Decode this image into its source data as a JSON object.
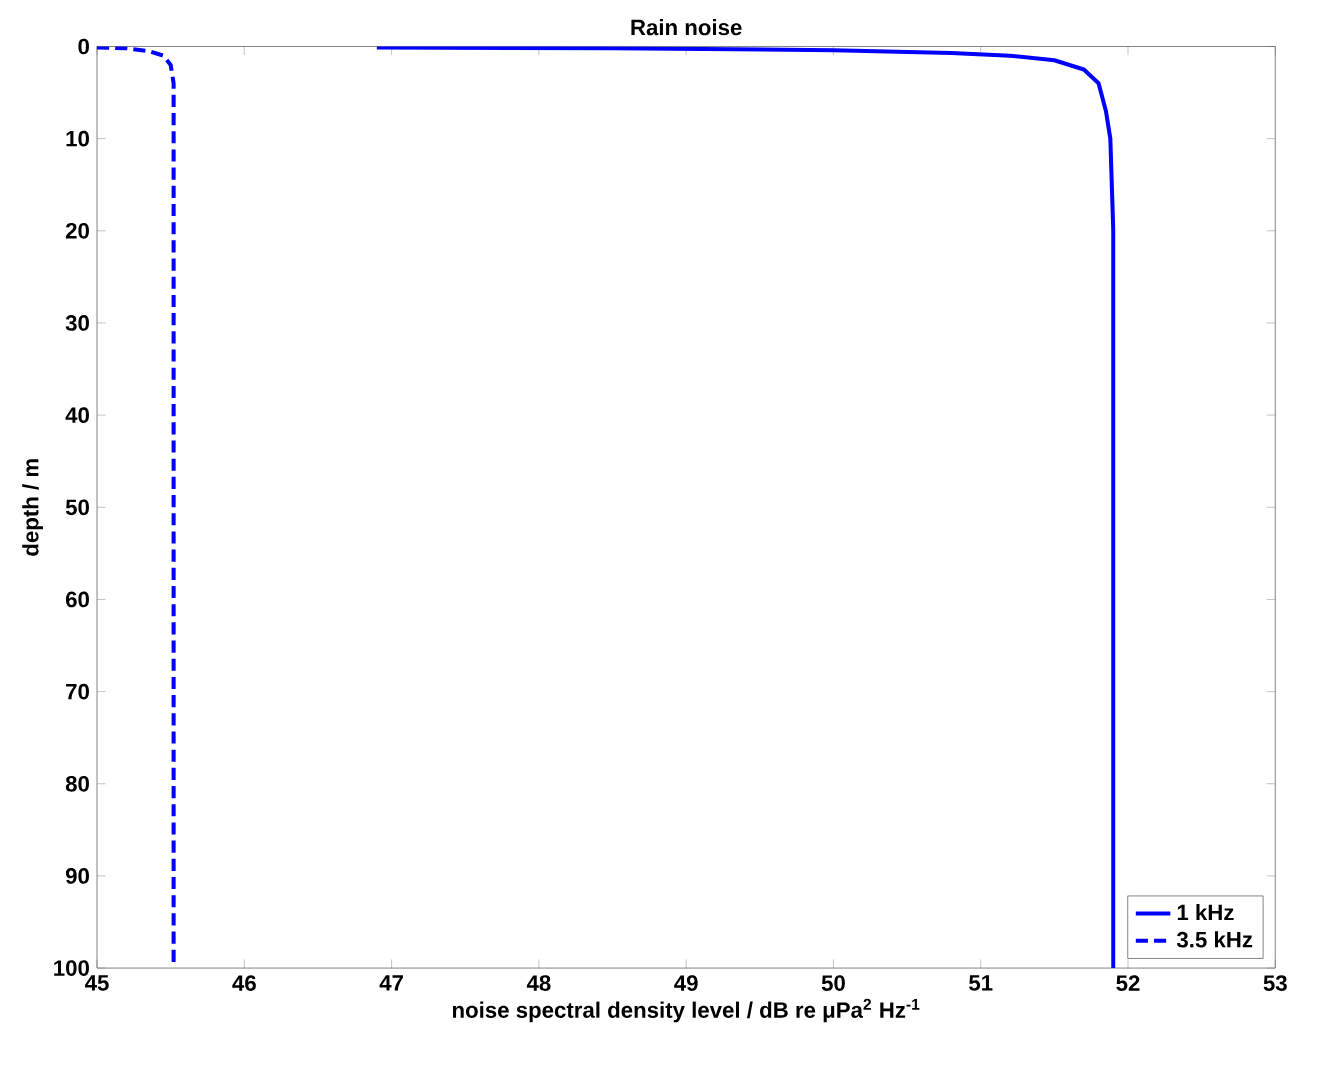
{
  "chart_data": {
    "type": "line",
    "title": "Rain noise",
    "xlabel": "noise spectral density level / dB re μPa$^{2}$ Hz$^{-1}$",
    "ylabel": "depth / m",
    "xlim": [
      45,
      53
    ],
    "xticks": [
      45,
      46,
      47,
      48,
      49,
      50,
      51,
      52,
      53
    ],
    "ylim": [
      100,
      0
    ],
    "yticks": [
      0,
      10,
      20,
      30,
      40,
      50,
      60,
      70,
      80,
      90,
      100
    ],
    "grid": false,
    "legend": "bottom right",
    "marker": "none",
    "series": [
      {
        "name": "1 kHz",
        "color": "#0000ff",
        "line_style": "solid",
        "x": [
          46.9,
          48.5,
          50.0,
          50.8,
          51.2,
          51.5,
          51.7,
          51.8,
          51.85,
          51.88,
          51.9,
          51.9
        ],
        "values": [
          0.1,
          0.2,
          0.4,
          0.7,
          1.0,
          1.5,
          2.5,
          4.0,
          7.0,
          10,
          20,
          100
        ]
      },
      {
        "name": "3.5 kHz",
        "color": "#0000ff",
        "line_style": "dashed",
        "x": [
          45.0,
          45.2,
          45.35,
          45.45,
          45.5,
          45.52,
          45.52
        ],
        "values": [
          0.1,
          0.2,
          0.5,
          1.0,
          2.0,
          4.0,
          100
        ]
      }
    ]
  }
}
